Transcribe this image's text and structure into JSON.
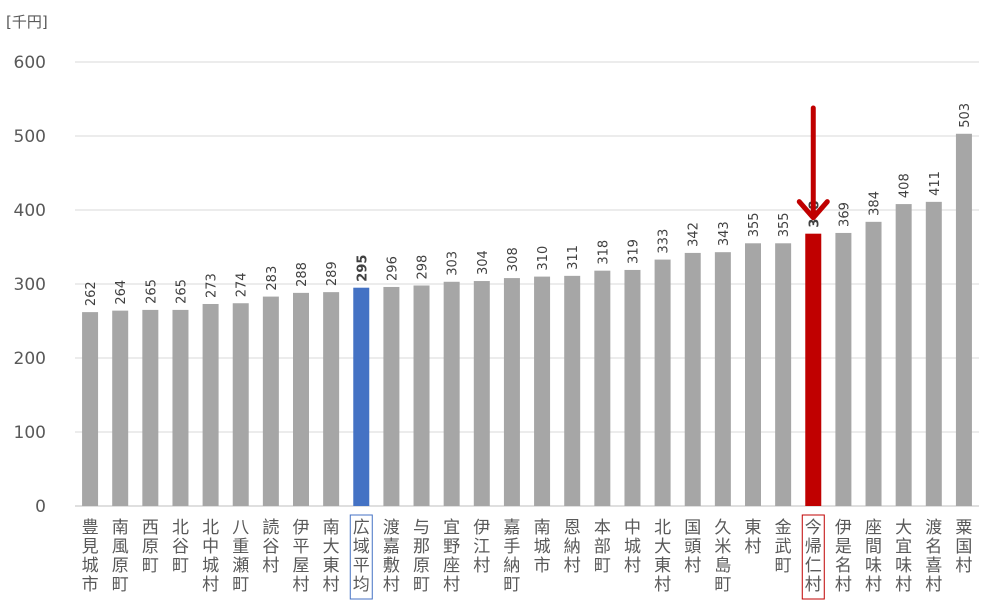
{
  "chart_data": {
    "type": "bar",
    "unit_label": "[千円]",
    "ylim": [
      0,
      600
    ],
    "yticks": [
      0,
      100,
      200,
      300,
      400,
      500,
      600
    ],
    "grid": true,
    "categories": [
      "豊見城市",
      "南風原町",
      "西原町",
      "北谷町",
      "北中城村",
      "八重瀬町",
      "読谷村",
      "伊平屋村",
      "南大東村",
      "広域平均",
      "渡嘉敷村",
      "与那原町",
      "宜野座村",
      "伊江村",
      "嘉手納町",
      "南城市",
      "恩納村",
      "本部町",
      "中城村",
      "北大東村",
      "国頭村",
      "久米島町",
      "東村",
      "金武町",
      "今帰仁村",
      "伊是名村",
      "座間味村",
      "大宜味村",
      "渡名喜村",
      "粟国村"
    ],
    "values": [
      262,
      264,
      265,
      265,
      273,
      274,
      283,
      288,
      289,
      295,
      296,
      298,
      303,
      304,
      308,
      310,
      311,
      318,
      319,
      333,
      342,
      343,
      355,
      355,
      368,
      369,
      384,
      408,
      411,
      503
    ],
    "colors": {
      "default": "#a6a6a6",
      "average": "#4472c4",
      "highlight": "#c00000",
      "label_default": "#404040"
    },
    "average_category": "広域平均",
    "highlight_category": "今帰仁村",
    "highlight_marker": "down-arrow-icon"
  }
}
